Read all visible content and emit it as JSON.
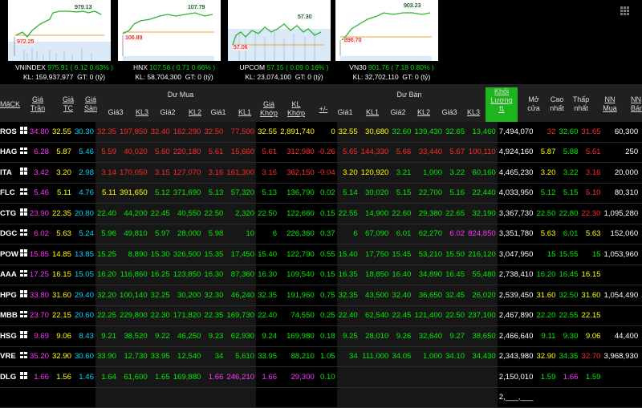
{
  "indices": [
    {
      "name": "VNINDEX",
      "value": "975.91",
      "change": "( 6.12",
      "pct": "0.63% )",
      "kl": "KL: 159,937,977",
      "gt": "GT: 0 (tỷ)",
      "high": "979.13",
      "ref": "972.25"
    },
    {
      "name": "HNX",
      "value": "107.56",
      "change": "( 0.71",
      "pct": "0.66% )",
      "kl": "KL: 58,704,300",
      "gt": "GT: 0 (tỷ)",
      "high": "107.79",
      "ref": "106.89"
    },
    {
      "name": "UPCOM",
      "value": "57.15",
      "change": "( 0.09",
      "pct": "0.16% )",
      "kl": "KL: 23,074,100",
      "gt": "GT: 0 (tỷ)",
      "high": "57.30",
      "ref": "57.06"
    },
    {
      "name": "VN30",
      "value": "901.76",
      "change": "( 7.18",
      "pct": "0.80% )",
      "kl": "KL: 32,702,110",
      "gt": "GT: 0 (tỷ)",
      "high": "903.23",
      "ref": "896.70"
    }
  ],
  "header": {
    "ma_ck": "MãCK",
    "gia_tran": [
      "Giá",
      "Trần"
    ],
    "gia_tc": [
      "Giá",
      "TC"
    ],
    "gia_san": [
      "Giá",
      "Sàn"
    ],
    "du_mua": "Dư Mua",
    "du_ban": "Dư Bán",
    "buy_cols": [
      "Giá3",
      "KL3",
      "Giá2",
      "KL2",
      "Giá1",
      "KL1"
    ],
    "gia_khop": [
      "Giá",
      "Khớp"
    ],
    "kl_khop": [
      "KL",
      "Khớp"
    ],
    "change": "+/-",
    "sell_cols": [
      "Giá1",
      "KL1",
      "Giá2",
      "KL2",
      "Giá3",
      "KL3"
    ],
    "khoi_luong": [
      "Khối",
      "Lượng",
      "⇅"
    ],
    "mo_cua": [
      "Mở",
      "cửa"
    ],
    "cao_nhat": [
      "Cao",
      "nhất"
    ],
    "thap_nhat": [
      "Thấp",
      "nhất"
    ],
    "nn_mua": [
      "NN",
      "Mua"
    ],
    "nn_ban": [
      "NN",
      "Bán"
    ]
  },
  "rows": [
    [
      "ROS",
      "34.80",
      "32.55",
      "30.30",
      "32.35",
      "197,850",
      "32.40",
      "162,290",
      "32.50",
      "77,500",
      "32.55",
      "2,891,740",
      "0",
      "32.55",
      "30,680",
      "32.60",
      "139,430",
      "32.65",
      "13,460",
      "7,494,070",
      "32",
      "32.60",
      "31.65",
      "60,300",
      "4,"
    ],
    [
      "HAG",
      "6.28",
      "5.87",
      "5.46",
      "5.59",
      "40,020",
      "5.60",
      "220,180",
      "5.61",
      "15,660",
      "5.61",
      "312,980",
      "-0.26",
      "5.65",
      "144,330",
      "5.66",
      "33,440",
      "5.67",
      "100,110",
      "4,924,160",
      "5.87",
      "5.88",
      "5.61",
      "250",
      ""
    ],
    [
      "ITA",
      "3.42",
      "3.20",
      "2.98",
      "3.14",
      "170,050",
      "3.15",
      "127,070",
      "3.16",
      "161,300",
      "3.16",
      "362,150",
      "-0.04",
      "3.20",
      "120,920",
      "3.21",
      "1,000",
      "3.22",
      "60,160",
      "4,465,230",
      "3.20",
      "3.22",
      "3.16",
      "20,000",
      "10,"
    ],
    [
      "FLC",
      "5.46",
      "5.11",
      "4.76",
      "5.11",
      "391,650",
      "5.12",
      "371,690",
      "5.13",
      "57,320",
      "5.13",
      "136,790",
      "0.02",
      "5.14",
      "30,020",
      "5.15",
      "22,700",
      "5.16",
      "22,440",
      "4,033,950",
      "5.12",
      "5.15",
      "5.10",
      "80,310",
      ""
    ],
    [
      "CTG",
      "23.90",
      "22.35",
      "20.80",
      "22.40",
      "44,200",
      "22.45",
      "40,550",
      "22.50",
      "2,320",
      "22.50",
      "122,660",
      "0.15",
      "22.55",
      "14,900",
      "22.60",
      "29,380",
      "22.65",
      "32,190",
      "3,367,730",
      "22.50",
      "22.80",
      "22.30",
      "1,095,280",
      ""
    ],
    [
      "DGC",
      "6.02",
      "5.63",
      "5.24",
      "5.96",
      "49,810",
      "5.97",
      "28,000",
      "5.98",
      "10",
      "6",
      "226,360",
      "0.37",
      "6",
      "67,090",
      "6.01",
      "62,270",
      "6.02",
      "824,850",
      "3,351,780",
      "5.63",
      "6.01",
      "5.63",
      "152,060",
      ""
    ],
    [
      "POW",
      "15.85",
      "14.85",
      "13.85",
      "15.25",
      "8,890",
      "15.30",
      "326,500",
      "15.35",
      "17,450",
      "15.40",
      "122,790",
      "0.55",
      "15.40",
      "17,750",
      "15.45",
      "53,210",
      "15.50",
      "216,120",
      "3,047,950",
      "15",
      "15.55",
      "15",
      "1,053,960",
      "2,"
    ],
    [
      "AAA",
      "17.25",
      "16.15",
      "15.05",
      "16.20",
      "116,860",
      "16.25",
      "123,850",
      "16.30",
      "87,360",
      "16.30",
      "109,540",
      "0.15",
      "16.35",
      "18,850",
      "16.40",
      "34,890",
      "16.45",
      "55,480",
      "2,738,410",
      "16.20",
      "16.45",
      "16.15",
      "",
      ""
    ],
    [
      "HPG",
      "33.80",
      "31.60",
      "29.40",
      "32.20",
      "100,140",
      "32.25",
      "30,200",
      "32.30",
      "46,240",
      "32.35",
      "191,960",
      "0.75",
      "32.35",
      "43,500",
      "32.40",
      "36,650",
      "32.45",
      "26,020",
      "2,539,450",
      "31.60",
      "32.50",
      "31.60",
      "1,054,490",
      "247,"
    ],
    [
      "MBB",
      "23.70",
      "22.15",
      "20.60",
      "22.25",
      "229,800",
      "22.30",
      "171,820",
      "22.35",
      "169,730",
      "22.40",
      "74,550",
      "0.25",
      "22.40",
      "62,540",
      "22.45",
      "121,400",
      "22.50",
      "237,100",
      "2,467,890",
      "22.20",
      "22.55",
      "22.15",
      "",
      ""
    ],
    [
      "HSG",
      "9.69",
      "9.06",
      "8.43",
      "9.21",
      "38,520",
      "9.22",
      "46,250",
      "9.23",
      "62,930",
      "9.24",
      "169,980",
      "0.18",
      "9.25",
      "28,010",
      "9.26",
      "32,640",
      "9.27",
      "38,650",
      "2,466,640",
      "9.11",
      "9.30",
      "9.06",
      "44,400",
      ""
    ],
    [
      "VRE",
      "35.20",
      "32.90",
      "30.60",
      "33.90",
      "12,730",
      "33.95",
      "12,540",
      "34",
      "5,610",
      "33.95",
      "88,210",
      "1.05",
      "34",
      "111,000",
      "34.05",
      "1,000",
      "34.10",
      "34,430",
      "2,343,980",
      "32.90",
      "34.35",
      "32.70",
      "3,968,930",
      "4,"
    ],
    [
      "DLG",
      "1.66",
      "1.56",
      "1.46",
      "1.64",
      "61,600",
      "1.65",
      "169,880",
      "1.66",
      "246,210",
      "1.66",
      "29,300",
      "0.10",
      "",
      "",
      "",
      "",
      "",
      "",
      "2,150,010",
      "1.59",
      "1.66",
      "1.59",
      "",
      ""
    ],
    [
      "",
      "",
      "",
      "",
      "",
      "",
      "",
      "",
      "",
      "",
      "",
      "",
      "",
      "",
      "",
      "",
      "",
      "",
      "",
      "2,___,___",
      "",
      "",
      "",
      "",
      ""
    ]
  ]
}
